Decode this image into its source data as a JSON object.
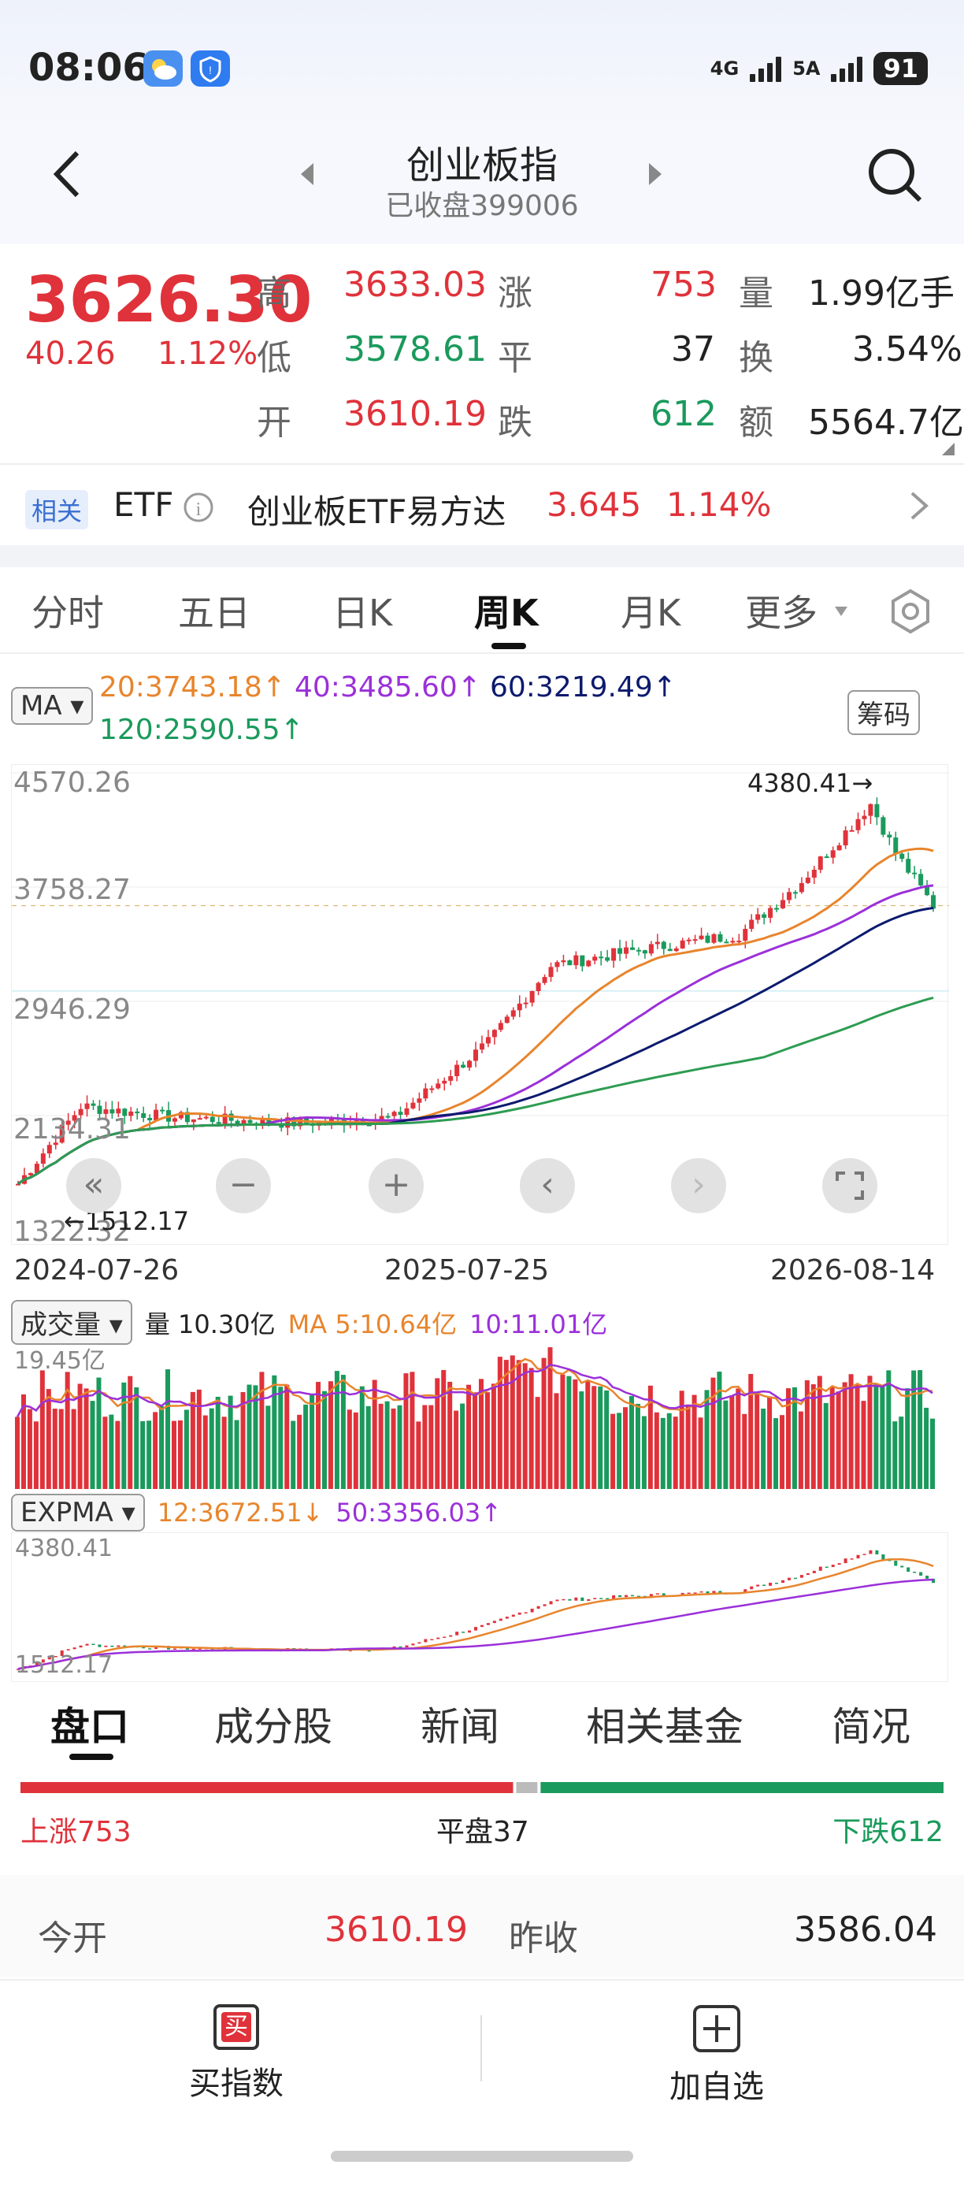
{
  "status_bar": {
    "time": "08:06",
    "net1": "4G",
    "net2": "5A",
    "battery": "91"
  },
  "header": {
    "title": "创业板指",
    "subtitle": "已收盘399006"
  },
  "quote": {
    "price": "3626.30",
    "change": "40.26",
    "change_pct": "1.12%",
    "high_label": "高",
    "high": "3633.03",
    "low_label": "低",
    "low": "3578.61",
    "open_label": "开",
    "open": "3610.19",
    "up_label": "涨",
    "up": "753",
    "flat_label": "平",
    "flat": "37",
    "down_label": "跌",
    "down": "612",
    "vol_label": "量",
    "vol": "1.99亿手",
    "turn_label": "换",
    "turn": "3.54%",
    "amt_label": "额",
    "amt": "5564.7亿"
  },
  "etf": {
    "tag": "相关",
    "type": "ETF",
    "name": "创业板ETF易方达",
    "price": "3.645",
    "pct": "1.14%"
  },
  "tabs": [
    "分时",
    "五日",
    "日K",
    "周K",
    "月K",
    "更多"
  ],
  "ma": {
    "label": "MA",
    "ma20": "20:3743.18↑",
    "ma40": "40:3485.60↑",
    "ma60": "60:3219.49↑",
    "ma120": "120:2590.55↑",
    "chip_button": "筹码"
  },
  "chart": {
    "y_labels": [
      "4570.26",
      "3758.27",
      "2946.29",
      "2134.31",
      "1322.32"
    ],
    "high_mark": "4380.41→",
    "low_mark": "←1512.17",
    "x_labels": [
      "2024-07-26",
      "2025-07-25",
      "2026-08-14"
    ],
    "colors": {
      "up": "#e0323a",
      "down": "#1a9a5c",
      "ma20": "#e8852d",
      "ma40": "#9b30d9",
      "ma60": "#0c1a6e",
      "ma120": "#2e9c52"
    }
  },
  "volume": {
    "label": "成交量",
    "vol": "量 10.30亿",
    "ma5": "MA 5:10.64亿",
    "ma10": "10:11.01亿",
    "y_label": "19.45亿"
  },
  "expma": {
    "label": "EXPMA",
    "e12": "12:3672.51↓",
    "e50": "50:3356.03↑",
    "y_top": "4380.41",
    "y_bottom": "1512.17"
  },
  "bottom_tabs": [
    "盘口",
    "成分股",
    "新闻",
    "相关基金",
    "简况"
  ],
  "breadth": {
    "up": "上涨753",
    "flat": "平盘37",
    "down": "下跌612"
  },
  "open_row": {
    "open_label": "今开",
    "open": "3610.19",
    "prev_label": "昨收",
    "prev": "3586.04"
  },
  "footer": {
    "buy_icon": "买",
    "buy": "买指数",
    "add": "加自选"
  }
}
